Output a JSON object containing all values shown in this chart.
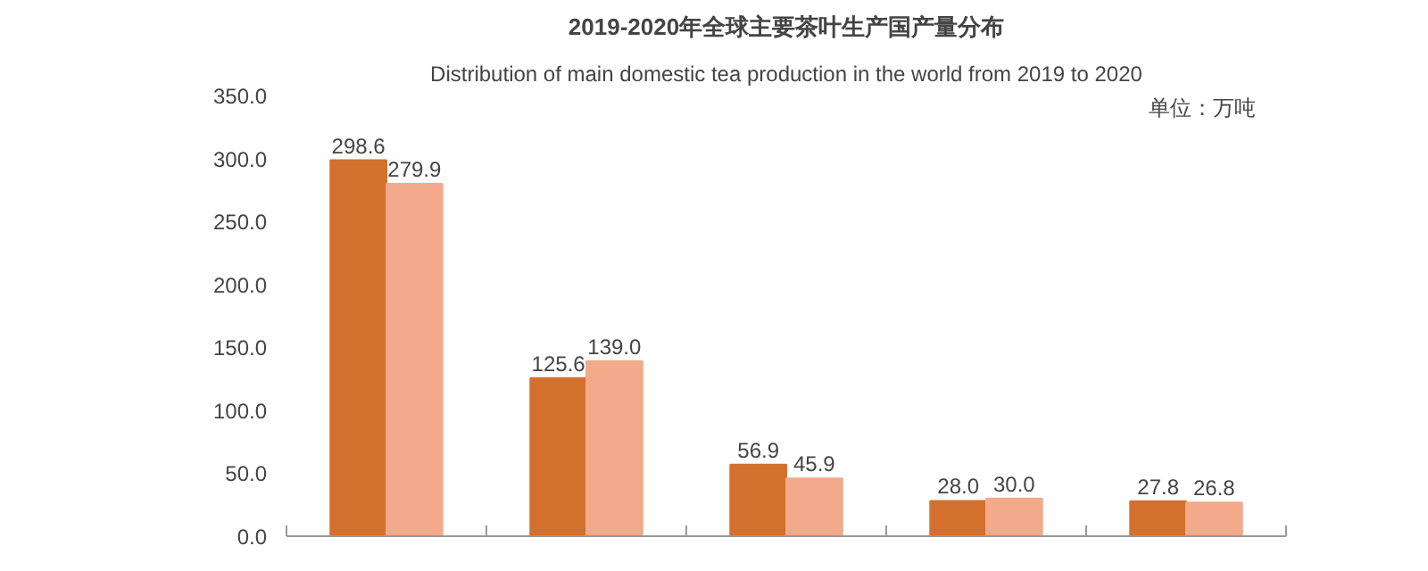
{
  "chart_data": {
    "type": "bar",
    "title": "2019-2020年全球主要茶叶生产国产量分布",
    "subtitle": "Distribution of main domestic tea production in the world from 2019 to 2020",
    "annotations": [
      "单位：万吨"
    ],
    "categories": [
      null,
      null,
      null,
      null,
      null
    ],
    "series": [
      {
        "color": "#d4702e",
        "values": [
          298.6,
          125.6,
          56.9,
          28.0,
          27.8
        ],
        "value_labels": [
          "298.6",
          "125.6",
          "56.9",
          "28.0",
          "27.8"
        ]
      },
      {
        "color": "#f2aa8a",
        "values": [
          279.9,
          139.0,
          45.9,
          30.0,
          26.8
        ],
        "value_labels": [
          "279.9",
          "139.0",
          "45.9",
          "30.0",
          "26.8"
        ]
      }
    ],
    "ylim": [
      0,
      350
    ],
    "yticks": [
      {
        "value": 0,
        "label": "0.0"
      },
      {
        "value": 50,
        "label": "50.0"
      },
      {
        "value": 100,
        "label": "100.0"
      },
      {
        "value": 150,
        "label": "150.0"
      },
      {
        "value": 200,
        "label": "200.0"
      },
      {
        "value": 250,
        "label": "250.0"
      },
      {
        "value": 300,
        "label": "300.0"
      },
      {
        "value": 350,
        "label": "350.0"
      }
    ],
    "grid": false
  }
}
